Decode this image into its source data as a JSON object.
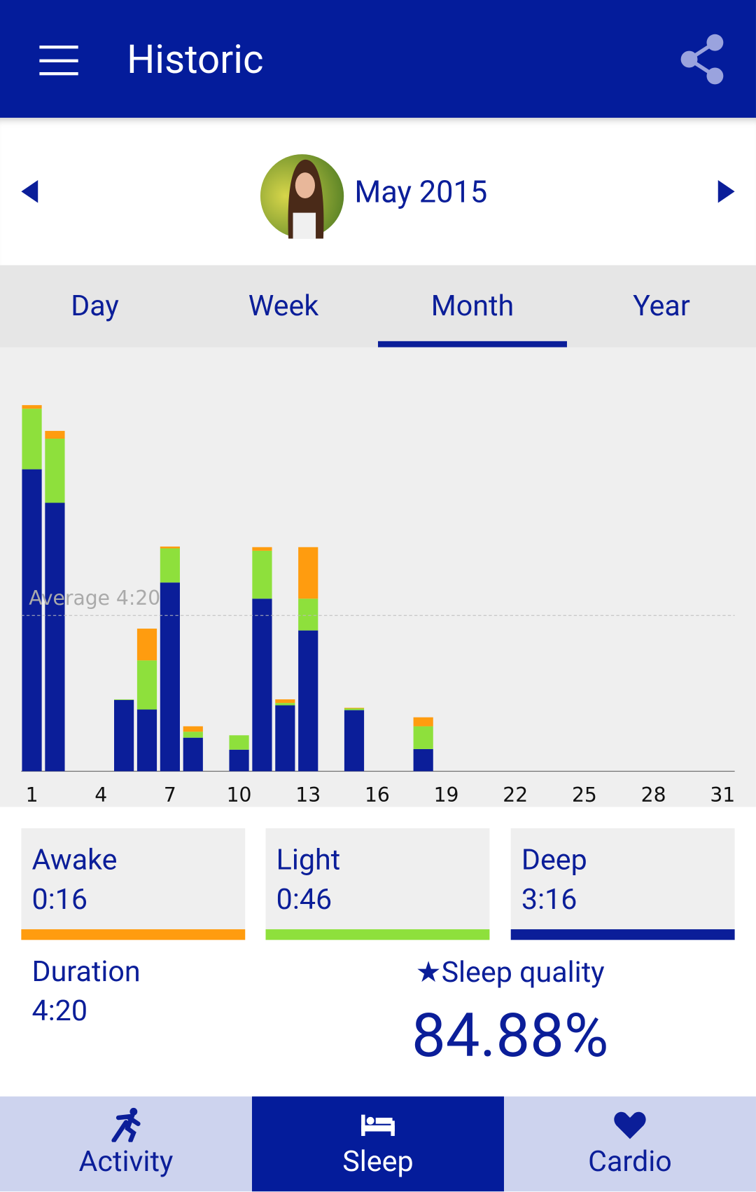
{
  "app_bar": {
    "title": "Historic"
  },
  "period": {
    "label": "May 2015"
  },
  "tabs": [
    "Day",
    "Week",
    "Month",
    "Year"
  ],
  "chart_data": {
    "type": "bar",
    "stacked": true,
    "categories": [
      "1",
      null,
      null,
      "4",
      null,
      null,
      "7",
      null,
      null,
      "10",
      null,
      null,
      "13",
      null,
      null,
      "16",
      null,
      null,
      "19",
      null,
      null,
      "22",
      null,
      null,
      "25",
      null,
      null,
      "28",
      null,
      null,
      "31"
    ],
    "series": [
      {
        "name": "Deep",
        "color": "#0b1e99",
        "values": [
          504,
          448,
          null,
          null,
          119,
          103,
          315,
          56,
          null,
          36,
          288,
          110,
          235,
          null,
          102,
          null,
          null,
          37,
          null,
          null,
          null,
          null,
          null,
          null,
          null,
          null,
          null,
          null,
          null,
          null,
          null
        ]
      },
      {
        "name": "Light",
        "color": "#8ee03c",
        "values": [
          101,
          107,
          null,
          null,
          1,
          82,
          57,
          10,
          null,
          24,
          80,
          4,
          53,
          null,
          3,
          null,
          null,
          38,
          null,
          null,
          null,
          null,
          null,
          null,
          null,
          null,
          null,
          null,
          null,
          null,
          null
        ]
      },
      {
        "name": "Awake",
        "color": "#ff9c0f",
        "values": [
          6,
          13,
          null,
          null,
          0,
          53,
          3,
          9,
          null,
          0,
          6,
          6,
          86,
          null,
          1,
          null,
          null,
          15,
          null,
          null,
          null,
          null,
          null,
          null,
          null,
          null,
          null,
          null,
          null,
          null,
          null
        ]
      }
    ],
    "ylim": [
      0,
      700
    ],
    "average": {
      "label": "Average 4:20",
      "value": 260
    }
  },
  "stats": {
    "awake": "0:16",
    "light": "0:46",
    "deep": "3:16"
  },
  "duration": {
    "label": "Duration",
    "value": "4:20"
  },
  "quality": {
    "label": "Sleep quality",
    "value": "84.88%"
  },
  "nav": [
    "Activity",
    "Sleep",
    "Cardio"
  ]
}
